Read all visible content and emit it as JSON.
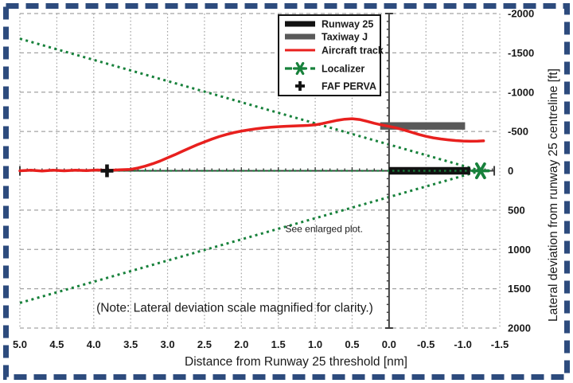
{
  "figure": {
    "frame_color": "#2d4b7d",
    "background": "#ffffff"
  },
  "chart_data": {
    "type": "line",
    "title": "",
    "xlabel": "Distance from Runway 25 threshold [nm]",
    "ylabel": "Lateral deviation from runway 25 centreline  [ft]",
    "xlim": [
      5.0,
      -1.5
    ],
    "ylim": [
      -2000,
      2000
    ],
    "x_ticks": [
      5.0,
      4.5,
      4.0,
      3.5,
      3.0,
      2.5,
      2.0,
      1.5,
      1.0,
      0.5,
      0.0,
      -0.5,
      -1.0,
      -1.5
    ],
    "x_tick_labels": [
      "5.0",
      "4.5",
      "4.0",
      "3.5",
      "3.0",
      "2.5",
      "2.0",
      "1.5",
      "1.0",
      "0.5",
      "0.0",
      "-0.5",
      "-1.0",
      "-1.5"
    ],
    "y_ticks": [
      -2000,
      -1500,
      -1000,
      -500,
      0,
      500,
      1000,
      1500,
      2000
    ],
    "y_tick_labels": [
      "-2000",
      "-1500",
      "-1000",
      "-500",
      "0",
      "500",
      "1000",
      "1500",
      "2000"
    ],
    "y_axis_side": "right",
    "grid": true,
    "grid_color": "#a3a3a3",
    "axis_color": "#3f3f3f",
    "x_minor_tick_step": 0.1,
    "y_minor_tick_step": 100,
    "threshold_line_x": 0.0,
    "centerline_y": 0,
    "legend": {
      "position": "top-center",
      "entries": [
        {
          "label": "Runway 25",
          "style": "thick-line",
          "color": "#121212"
        },
        {
          "label": "Taxiway J",
          "style": "thick-line",
          "color": "#595959"
        },
        {
          "label": "Aircraft track",
          "style": "line",
          "color": "#e8201e"
        },
        {
          "label": "Localizer",
          "style": "dashed-star",
          "color": "#17813b"
        },
        {
          "label": "FAF PERVA",
          "style": "plus-marker",
          "color": "#121212"
        }
      ]
    },
    "series": [
      {
        "name": "Aircraft track",
        "color": "#e8201e",
        "points": [
          [
            5.0,
            0
          ],
          [
            4.85,
            -8
          ],
          [
            4.7,
            2
          ],
          [
            4.55,
            -8
          ],
          [
            4.4,
            0
          ],
          [
            4.25,
            -8
          ],
          [
            4.1,
            -2
          ],
          [
            3.95,
            -10
          ],
          [
            3.8,
            -5
          ],
          [
            3.65,
            -12
          ],
          [
            3.5,
            -18
          ],
          [
            3.4,
            -35
          ],
          [
            3.3,
            -60
          ],
          [
            3.2,
            -90
          ],
          [
            3.1,
            -125
          ],
          [
            3.0,
            -165
          ],
          [
            2.9,
            -205
          ],
          [
            2.8,
            -248
          ],
          [
            2.7,
            -290
          ],
          [
            2.6,
            -330
          ],
          [
            2.5,
            -368
          ],
          [
            2.4,
            -403
          ],
          [
            2.3,
            -435
          ],
          [
            2.2,
            -463
          ],
          [
            2.1,
            -486
          ],
          [
            2.0,
            -505
          ],
          [
            1.9,
            -521
          ],
          [
            1.8,
            -535
          ],
          [
            1.7,
            -546
          ],
          [
            1.6,
            -555
          ],
          [
            1.5,
            -561
          ],
          [
            1.4,
            -566
          ],
          [
            1.3,
            -570
          ],
          [
            1.2,
            -573
          ],
          [
            1.1,
            -577
          ],
          [
            1.0,
            -584
          ],
          [
            0.9,
            -602
          ],
          [
            0.8,
            -622
          ],
          [
            0.7,
            -642
          ],
          [
            0.6,
            -656
          ],
          [
            0.5,
            -662
          ],
          [
            0.4,
            -652
          ],
          [
            0.3,
            -630
          ],
          [
            0.2,
            -605
          ],
          [
            0.1,
            -583
          ],
          [
            0.0,
            -565
          ],
          [
            -0.1,
            -545
          ],
          [
            -0.2,
            -520
          ],
          [
            -0.3,
            -492
          ],
          [
            -0.4,
            -463
          ],
          [
            -0.5,
            -438
          ],
          [
            -0.6,
            -419
          ],
          [
            -0.7,
            -405
          ],
          [
            -0.8,
            -394
          ],
          [
            -0.9,
            -385
          ],
          [
            -1.0,
            -379
          ],
          [
            -1.1,
            -376
          ],
          [
            -1.2,
            -377
          ],
          [
            -1.28,
            -381
          ]
        ]
      },
      {
        "name": "Runway 25",
        "color": "#121212",
        "bar": {
          "x_from": 0.0,
          "x_to": -1.1,
          "deviation": 0,
          "height_ft": 95
        }
      },
      {
        "name": "Taxiway J",
        "color": "#595959",
        "bar": {
          "x_from": 0.12,
          "x_to": -1.03,
          "deviation": -570,
          "height_ft": 95
        }
      },
      {
        "name": "Localizer",
        "color": "#17813b",
        "apex": [
          -1.24,
          0
        ],
        "beam_edges": [
          [
            5.0,
            -1680
          ],
          [
            5.0,
            1680
          ]
        ],
        "centerline_from": 5.0,
        "star_marker": [
          -1.24,
          0
        ]
      },
      {
        "name": "FAF PERVA",
        "color": "#121212",
        "marker": "plus",
        "point": [
          3.82,
          0
        ]
      }
    ],
    "annotations": [
      {
        "id": "see-enlarged",
        "text": "See enlarged plot.",
        "x": 0.88,
        "y": 735,
        "font_px": 12
      },
      {
        "id": "note",
        "text": "(Note: Lateral deviation scale magnified for clarity.)",
        "x": 2.09,
        "y": 1735,
        "font_px": 15.5
      }
    ]
  }
}
